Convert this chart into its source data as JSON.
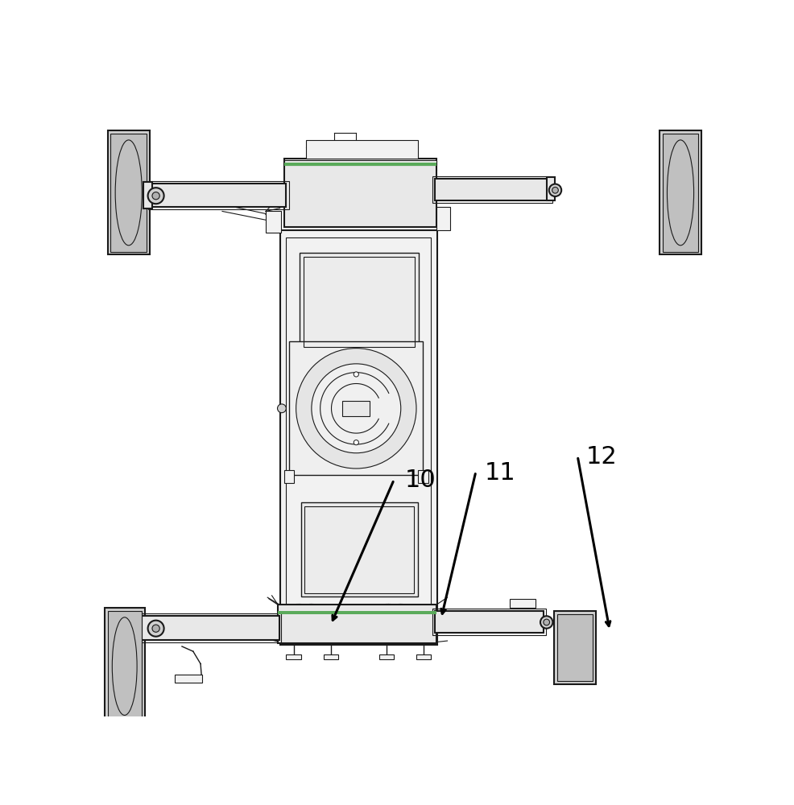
{
  "bg_color": "#ffffff",
  "line_color": "#1a1a1a",
  "fill_body": "#f2f2f2",
  "fill_wheel": "#d5d5d5",
  "fill_axle": "#e8e8e8",
  "fill_ring": "#efefef",
  "fill_box": "#ececec",
  "green_line": "#5aaa5a",
  "dashed_color": "#888888",
  "arrow_color": "#000000",
  "label_10": "10",
  "label_11": "11",
  "label_12": "12",
  "figsize": [
    9.87,
    10.0
  ],
  "dpi": 100
}
